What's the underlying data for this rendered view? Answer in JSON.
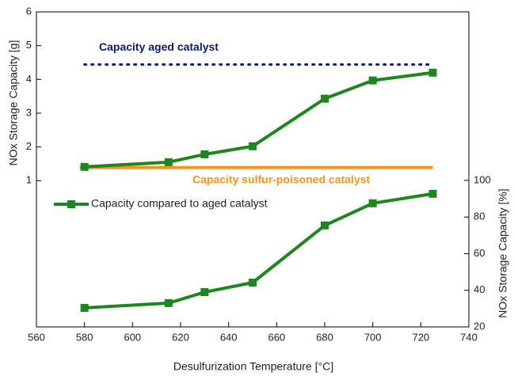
{
  "chart_data": {
    "type": "line",
    "xlabel": "Desulfurization Temperature [°C]",
    "ylabel": "NOx Storage Capacity [g]",
    "y2label": "NOx Storage Capacity [%]",
    "x": [
      580,
      615,
      630,
      650,
      680,
      700,
      725
    ],
    "series": [
      {
        "color": "#1e861e",
        "values": [
          1.41,
          1.55,
          1.78,
          2.02,
          3.43,
          3.97,
          4.2
        ]
      },
      {
        "name": "Capacity compared to aged catalyst",
        "color": "#1e861e",
        "axis": "y2",
        "values": [
          30.4,
          33,
          39,
          44.2,
          75.4,
          87.5,
          92.7
        ]
      }
    ],
    "reference_lines": [
      {
        "label": "Capacity aged catalyst",
        "value": 4.44,
        "color": "#0a1a7a",
        "style": "dotted",
        "x": [
          580,
          725
        ]
      },
      {
        "label": "Capacity sulfur-poisoned catalyst",
        "value": 1.39,
        "color": "#f7941d",
        "style": "solid",
        "x": [
          578,
          725
        ]
      }
    ],
    "xlim": [
      560,
      740
    ],
    "xticks": [
      560,
      580,
      600,
      620,
      640,
      660,
      680,
      700,
      720,
      740
    ],
    "ylim": [
      -3.33,
      6
    ],
    "yticks": [
      1,
      2,
      3,
      4,
      5,
      6
    ],
    "y2lim": [
      20,
      192
    ],
    "y2ticks": [
      20,
      40,
      60,
      80,
      100
    ],
    "legend": "upper left"
  }
}
